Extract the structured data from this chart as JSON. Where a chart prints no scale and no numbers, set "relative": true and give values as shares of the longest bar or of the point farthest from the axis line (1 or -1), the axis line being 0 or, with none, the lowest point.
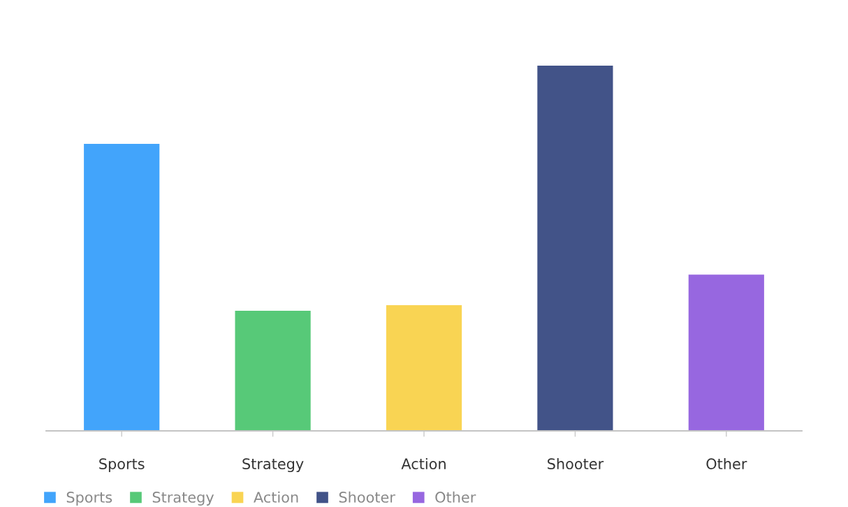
{
  "chart_data": {
    "type": "bar",
    "categories": [
      "Sports",
      "Strategy",
      "Action",
      "Shooter",
      "Other"
    ],
    "series": [
      {
        "name": "Sports",
        "color": "#42a4fb",
        "values": [
          0.786,
          null,
          null,
          null,
          null
        ]
      },
      {
        "name": "Strategy",
        "color": "#57c978",
        "values": [
          null,
          0.329,
          null,
          null,
          null
        ]
      },
      {
        "name": "Action",
        "color": "#f9d453",
        "values": [
          null,
          null,
          0.344,
          null,
          null
        ]
      },
      {
        "name": "Shooter",
        "color": "#425388",
        "values": [
          null,
          null,
          null,
          1,
          null
        ]
      },
      {
        "name": "Other",
        "color": "#9767e0",
        "values": [
          null,
          null,
          null,
          null,
          0.428
        ]
      }
    ],
    "stacked": true,
    "relative": true,
    "legend": "bottom left"
  }
}
